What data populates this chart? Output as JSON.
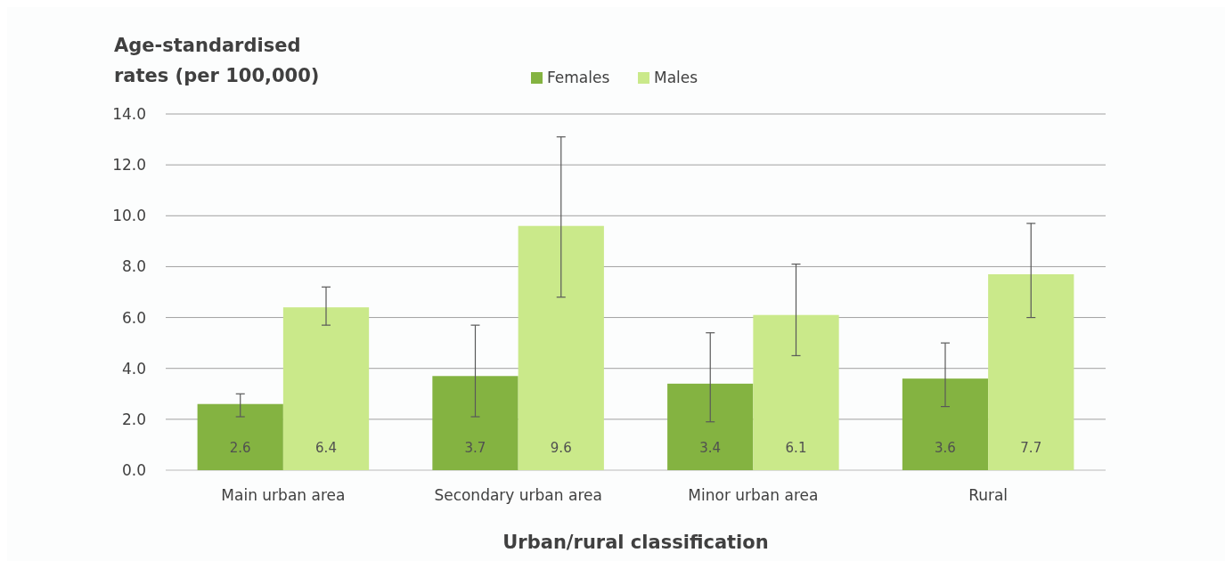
{
  "chart_data": {
    "type": "bar",
    "ylabel": "Age-standardised rates (per 100,000)",
    "xlabel": "Urban/rural classification",
    "categories": [
      "Main urban area",
      "Secondary urban area",
      "Minor urban area",
      "Rural"
    ],
    "series": [
      {
        "name": "Females",
        "color": "#84b341",
        "values": [
          2.6,
          3.7,
          3.4,
          3.6
        ],
        "errors": [
          [
            2.1,
            3.0
          ],
          [
            2.1,
            5.7
          ],
          [
            1.9,
            5.4
          ],
          [
            2.5,
            5.0
          ]
        ]
      },
      {
        "name": "Males",
        "color": "#cae98a",
        "values": [
          6.4,
          9.6,
          6.1,
          7.7
        ],
        "errors": [
          [
            5.7,
            7.2
          ],
          [
            6.8,
            13.1
          ],
          [
            4.5,
            8.1
          ],
          [
            6.0,
            9.7
          ]
        ]
      }
    ],
    "ylim": [
      0,
      14
    ],
    "yticks": [
      {
        "value": 0,
        "label": "0.0"
      },
      {
        "value": 2,
        "label": "2.0"
      },
      {
        "value": 4,
        "label": "4.0"
      },
      {
        "value": 6,
        "label": "6.0"
      },
      {
        "value": 8,
        "label": "8.0"
      },
      {
        "value": 10,
        "label": "10.0"
      },
      {
        "value": 12,
        "label": "12.0"
      },
      {
        "value": 14,
        "label": "14.0"
      }
    ],
    "grid": "y",
    "legend": "top",
    "data_labels": true
  }
}
